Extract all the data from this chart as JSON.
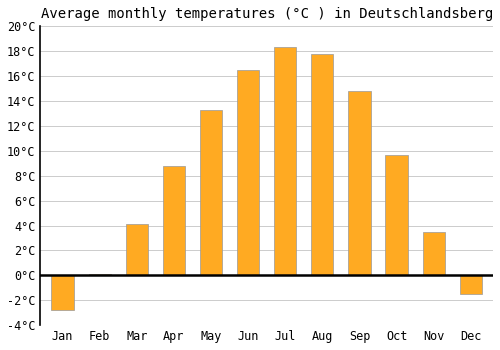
{
  "months": [
    "Jan",
    "Feb",
    "Mar",
    "Apr",
    "May",
    "Jun",
    "Jul",
    "Aug",
    "Sep",
    "Oct",
    "Nov",
    "Dec"
  ],
  "values": [
    -2.8,
    0.1,
    4.1,
    8.8,
    13.3,
    16.5,
    18.3,
    17.8,
    14.8,
    9.7,
    3.5,
    -1.5
  ],
  "bar_color": "#FFAA22",
  "bar_edge_color": "#999999",
  "title": "Average monthly temperatures (°C ) in Deutschlandsberg",
  "ylim": [
    -4,
    20
  ],
  "yticks": [
    -4,
    -2,
    0,
    2,
    4,
    6,
    8,
    10,
    12,
    14,
    16,
    18,
    20
  ],
  "background_color": "#ffffff",
  "grid_color": "#cccccc",
  "zero_line_color": "#000000",
  "title_fontsize": 10,
  "tick_fontsize": 8.5,
  "figsize": [
    5.0,
    3.5
  ],
  "dpi": 100
}
